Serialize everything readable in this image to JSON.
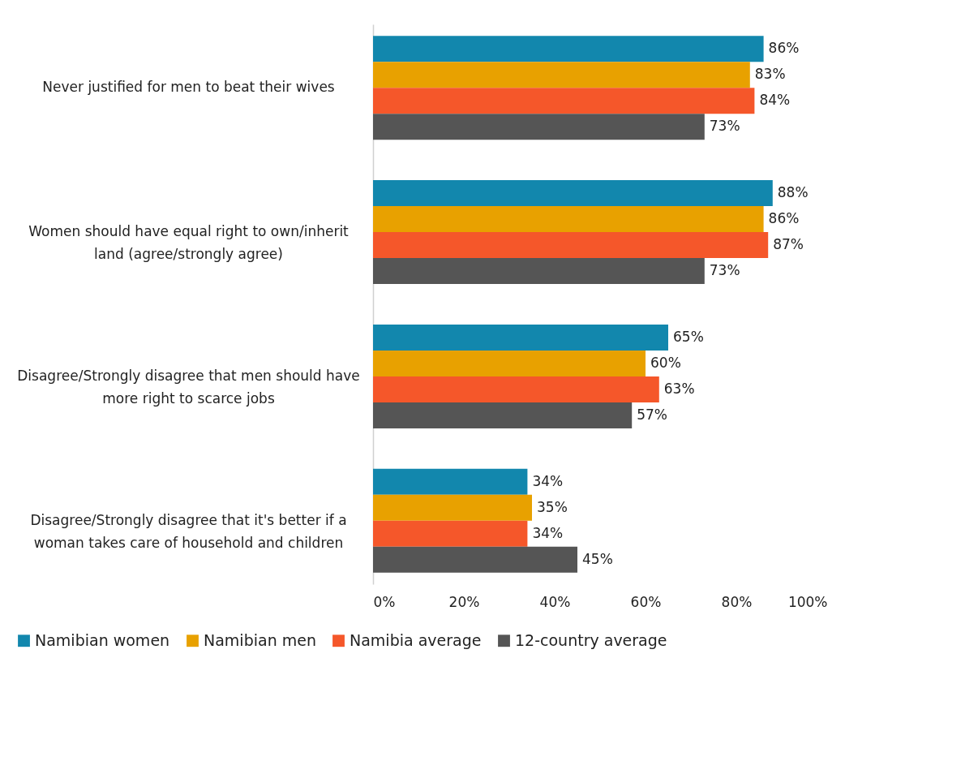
{
  "chart_data": {
    "type": "bar",
    "orientation": "horizontal",
    "categories": [
      "Never justified for men to beat their wives",
      "Women should have equal right to own/inherit land (agree/strongly agree)",
      "Disagree/Strongly disagree that men should have more right to scarce jobs",
      "Disagree/Strongly disagree that it's better if a woman takes care of household and children"
    ],
    "series": [
      {
        "name": "Namibian women",
        "color": "#1287ad",
        "values": [
          86,
          88,
          65,
          34
        ],
        "value_labels": [
          "86%",
          "88%",
          "65%",
          "34%"
        ]
      },
      {
        "name": "Namibian men",
        "color": "#e8a100",
        "values": [
          83,
          86,
          60,
          35
        ],
        "value_labels": [
          "83%",
          "86%",
          "60%",
          "35%"
        ]
      },
      {
        "name": "Namibia average",
        "color": "#f5572a",
        "values": [
          84,
          87,
          63,
          34
        ],
        "value_labels": [
          "84%",
          "87%",
          "63%",
          "34%"
        ]
      },
      {
        "name": "12-country average",
        "color": "#555555",
        "values": [
          73,
          73,
          57,
          45
        ],
        "value_labels": [
          "73%",
          "73%",
          "57%",
          "45%"
        ]
      }
    ],
    "xlim": [
      0,
      100
    ],
    "xticks": [
      {
        "value": 0,
        "label": "0%"
      },
      {
        "value": 20,
        "label": "20%"
      },
      {
        "value": 40,
        "label": "40%"
      },
      {
        "value": 60,
        "label": "60%"
      },
      {
        "value": 80,
        "label": "80%"
      },
      {
        "value": 100,
        "label": "100%"
      }
    ],
    "legend": "bottom"
  }
}
